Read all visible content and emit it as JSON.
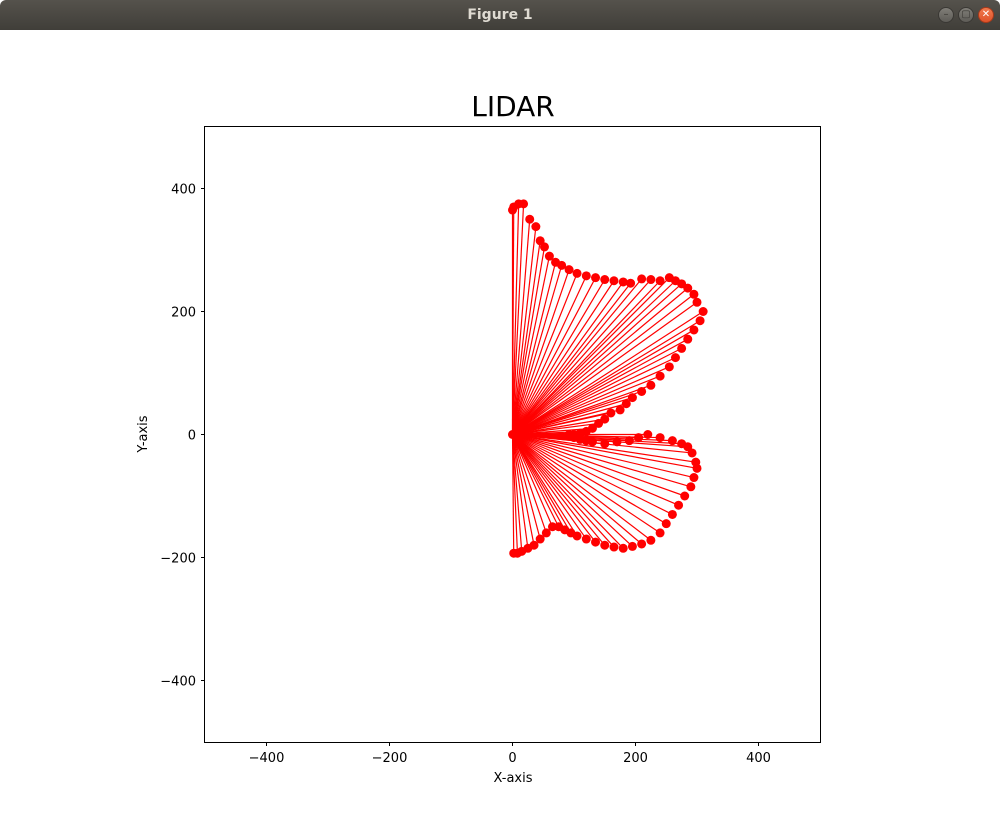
{
  "window": {
    "title": "Figure 1",
    "buttons": {
      "minimize": "–",
      "maximize": "▢",
      "close": "✕"
    }
  },
  "colors": {
    "marker": "#ff0000",
    "axes": "#000000",
    "titlebar": "#4a4742"
  },
  "chart_data": {
    "type": "scatter",
    "title": "LIDAR",
    "xlabel": "X-axis",
    "ylabel": "Y-axis",
    "xlim": [
      -500,
      500
    ],
    "ylim": [
      -500,
      500
    ],
    "xticks": [
      -400,
      -200,
      0,
      200,
      400
    ],
    "yticks": [
      -400,
      -200,
      0,
      200,
      400
    ],
    "xtick_labels": [
      "−400",
      "−200",
      "0",
      "200",
      "400"
    ],
    "ytick_labels": [
      "−400",
      "−200",
      "0",
      "200",
      "400"
    ],
    "grid": false,
    "marker_color": "#ff0000",
    "rays_from_origin": true,
    "series": [
      {
        "x": [
          0,
          2,
          10,
          18,
          28,
          38,
          45,
          52,
          60,
          70,
          80,
          92,
          105,
          120,
          135,
          150,
          165,
          180,
          192,
          210,
          225,
          240,
          255,
          265,
          275,
          285,
          295,
          300,
          310,
          305,
          295,
          285,
          275,
          265,
          255,
          240,
          225,
          210,
          195,
          185,
          175,
          160,
          150,
          140,
          130,
          120,
          110,
          100,
          92,
          100,
          110,
          120,
          130,
          150,
          170,
          190,
          205,
          220,
          240,
          260,
          275,
          285,
          292,
          298,
          300,
          295,
          290,
          280,
          270,
          260,
          250,
          240,
          225,
          210,
          195,
          180,
          165,
          150,
          135,
          120,
          105,
          95,
          85,
          75,
          65,
          55,
          45,
          35,
          25,
          15,
          8,
          2,
          0
        ],
        "y": [
          365,
          370,
          375,
          375,
          350,
          338,
          315,
          305,
          290,
          280,
          275,
          268,
          262,
          258,
          255,
          252,
          250,
          248,
          246,
          253,
          252,
          250,
          255,
          250,
          245,
          238,
          228,
          215,
          200,
          185,
          170,
          155,
          140,
          125,
          110,
          95,
          80,
          70,
          60,
          50,
          40,
          35,
          25,
          18,
          10,
          5,
          2,
          0,
          0,
          -5,
          -8,
          -10,
          -12,
          -15,
          -12,
          -10,
          -5,
          0,
          -5,
          -10,
          -15,
          -20,
          -30,
          -45,
          -55,
          -70,
          -85,
          -100,
          -115,
          -130,
          -145,
          -160,
          -172,
          -178,
          -182,
          -185,
          -183,
          -180,
          -175,
          -170,
          -165,
          -160,
          -155,
          -150,
          -150,
          -160,
          -170,
          -180,
          -185,
          -190,
          -193,
          -193,
          0
        ]
      }
    ]
  }
}
